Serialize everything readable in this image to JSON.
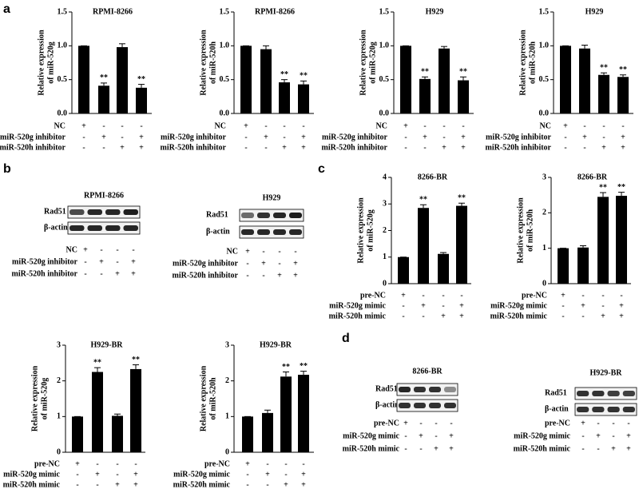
{
  "panel_labels": [
    "a",
    "b",
    "c",
    "d"
  ],
  "chart_data": [
    {
      "type": "bar",
      "title": "RPMI-8266",
      "ylabel": [
        "Relative expression",
        "of miR-520g"
      ],
      "color": "#000000",
      "ylim": [
        0,
        1.5
      ],
      "yticks": [
        {
          "value": 0,
          "label": "0.0"
        },
        0.5,
        {
          "value": 1,
          "label": "1.0"
        },
        1.5
      ],
      "values": [
        1.0,
        0.41,
        0.98,
        0.38
      ],
      "errors": [
        0,
        0.04,
        0.05,
        0.05
      ],
      "annotations": [
        null,
        "**",
        null,
        "**"
      ],
      "conditions": [
        {
          "label": "NC",
          "signs": [
            "+",
            "-",
            "-",
            "-"
          ]
        },
        {
          "label": "miR-520g inhibitor",
          "signs": [
            "-",
            "+",
            "-",
            "+"
          ]
        },
        {
          "label": "miR-520h inhibitor",
          "signs": [
            "-",
            "-",
            "+",
            "+"
          ]
        }
      ]
    },
    {
      "type": "bar",
      "title": "RPMI-8266",
      "ylabel": [
        "Relative expression",
        "of miR-520h"
      ],
      "color": "#000000",
      "ylim": [
        0,
        1.5
      ],
      "yticks": [
        {
          "value": 0,
          "label": "0.0"
        },
        0.5,
        {
          "value": 1,
          "label": "1.0"
        },
        1.5
      ],
      "values": [
        1.0,
        0.95,
        0.46,
        0.43
      ],
      "errors": [
        0,
        0.05,
        0.04,
        0.05
      ],
      "annotations": [
        null,
        null,
        "**",
        "**"
      ],
      "conditions": [
        {
          "label": "NC",
          "signs": [
            "+",
            "-",
            "-",
            "-"
          ]
        },
        {
          "label": "miR-520g inhibitor",
          "signs": [
            "-",
            "+",
            "-",
            "+"
          ]
        },
        {
          "label": "miR-520h inhibitor",
          "signs": [
            "-",
            "-",
            "+",
            "+"
          ]
        }
      ]
    },
    {
      "type": "bar",
      "title": "H929",
      "ylabel": [
        "Relative expression",
        "of miR-520g"
      ],
      "color": "#000000",
      "ylim": [
        0,
        1.5
      ],
      "yticks": [
        {
          "value": 0,
          "label": "0.0"
        },
        0.5,
        {
          "value": 1,
          "label": "1.0"
        },
        1.5
      ],
      "values": [
        1.0,
        0.51,
        0.96,
        0.49
      ],
      "errors": [
        0,
        0.03,
        0.03,
        0.05
      ],
      "annotations": [
        null,
        "**",
        null,
        "**"
      ],
      "conditions": [
        {
          "label": "NC",
          "signs": [
            "+",
            "-",
            "-",
            "-"
          ]
        },
        {
          "label": "miR-520g inhibitor",
          "signs": [
            "-",
            "+",
            "-",
            "+"
          ]
        },
        {
          "label": "miR-520h inhibitor",
          "signs": [
            "-",
            "-",
            "+",
            "+"
          ]
        }
      ]
    },
    {
      "type": "bar",
      "title": "H929",
      "ylabel": [
        "Relative expression",
        "of miR-520h"
      ],
      "color": "#000000",
      "ylim": [
        0,
        1.5
      ],
      "yticks": [
        {
          "value": 0,
          "label": "0.0"
        },
        0.5,
        {
          "value": 1,
          "label": "1.0"
        },
        1.5
      ],
      "values": [
        1.0,
        0.96,
        0.57,
        0.54
      ],
      "errors": [
        0,
        0.05,
        0.03,
        0.03
      ],
      "annotations": [
        null,
        null,
        "**",
        "**"
      ],
      "conditions": [
        {
          "label": "NC",
          "signs": [
            "+",
            "-",
            "-",
            "-"
          ]
        },
        {
          "label": "miR-520g inhibitor",
          "signs": [
            "-",
            "+",
            "-",
            "+"
          ]
        },
        {
          "label": "miR-520h inhibitor",
          "signs": [
            "-",
            "-",
            "+",
            "+"
          ]
        }
      ]
    },
    {
      "type": "bar",
      "title": "8266-BR",
      "ylabel": [
        "Relative expression",
        "of miR-520g"
      ],
      "color": "#000000",
      "ylim": [
        0,
        4
      ],
      "yticks": [
        0,
        1,
        2,
        3,
        4
      ],
      "values": [
        1.0,
        2.85,
        1.12,
        2.93
      ],
      "errors": [
        0,
        0.12,
        0.05,
        0.1
      ],
      "annotations": [
        null,
        "**",
        null,
        "**"
      ],
      "conditions": [
        {
          "label": "pre-NC",
          "signs": [
            "+",
            "-",
            "-",
            "-"
          ]
        },
        {
          "label": "miR-520g mimic",
          "signs": [
            "-",
            "+",
            "-",
            "+"
          ]
        },
        {
          "label": "miR-520h mimic",
          "signs": [
            "-",
            "-",
            "+",
            "+"
          ]
        }
      ]
    },
    {
      "type": "bar",
      "title": "8266-BR",
      "ylabel": [
        "Relative expression",
        "of miR-520h"
      ],
      "color": "#000000",
      "ylim": [
        0,
        3
      ],
      "yticks": [
        0,
        1,
        2,
        3
      ],
      "values": [
        1.0,
        1.02,
        2.45,
        2.48
      ],
      "errors": [
        0,
        0.05,
        0.12,
        0.1
      ],
      "annotations": [
        null,
        null,
        "**",
        "**"
      ],
      "conditions": [
        {
          "label": "pre-NC",
          "signs": [
            "+",
            "-",
            "-",
            "-"
          ]
        },
        {
          "label": "miR-520g mimic",
          "signs": [
            "-",
            "+",
            "-",
            "+"
          ]
        },
        {
          "label": "miR-520h mimic",
          "signs": [
            "-",
            "-",
            "+",
            "+"
          ]
        }
      ]
    },
    {
      "type": "bar",
      "title": "H929-BR",
      "ylabel": [
        "Relative expression",
        "of miR-520g"
      ],
      "color": "#000000",
      "ylim": [
        0,
        3
      ],
      "yticks": [
        0,
        1,
        2,
        3
      ],
      "values": [
        1.0,
        2.25,
        1.02,
        2.33
      ],
      "errors": [
        0,
        0.12,
        0.05,
        0.12
      ],
      "annotations": [
        null,
        "**",
        null,
        "**"
      ],
      "conditions": [
        {
          "label": "pre-NC",
          "signs": [
            "+",
            "-",
            "-",
            "-"
          ]
        },
        {
          "label": "miR-520g mimic",
          "signs": [
            "-",
            "+",
            "-",
            "+"
          ]
        },
        {
          "label": "miR-520h mimic",
          "signs": [
            "-",
            "-",
            "+",
            "+"
          ]
        }
      ]
    },
    {
      "type": "bar",
      "title": "H929-BR",
      "ylabel": [
        "Relative expression",
        "of miR-520h"
      ],
      "color": "#000000",
      "ylim": [
        0,
        3
      ],
      "yticks": [
        0,
        1,
        2,
        3
      ],
      "values": [
        1.0,
        1.1,
        2.12,
        2.17
      ],
      "errors": [
        0,
        0.08,
        0.13,
        0.1
      ],
      "annotations": [
        null,
        null,
        "**",
        "**"
      ],
      "conditions": [
        {
          "label": "pre-NC",
          "signs": [
            "+",
            "-",
            "-",
            "-"
          ]
        },
        {
          "label": "miR-520g mimic",
          "signs": [
            "-",
            "+",
            "-",
            "+"
          ]
        },
        {
          "label": "miR-520h mimic",
          "signs": [
            "-",
            "-",
            "+",
            "+"
          ]
        }
      ]
    }
  ],
  "blots": [
    {
      "title": "RPMI-8266",
      "rows": [
        "Rad51",
        "β-actin"
      ],
      "conditions": [
        {
          "label": "NC",
          "signs": [
            "+",
            "-",
            "-",
            "-"
          ]
        },
        {
          "label": "miR-520g inhibitor",
          "signs": [
            "-",
            "+",
            "-",
            "+"
          ]
        },
        {
          "label": "miR-520h inhibitor",
          "signs": [
            "-",
            "-",
            "+",
            "+"
          ]
        }
      ]
    },
    {
      "title": "H929",
      "rows": [
        "Rad51",
        "β-actin"
      ],
      "conditions": [
        {
          "label": "NC",
          "signs": [
            "+",
            "-",
            "-",
            "-"
          ]
        },
        {
          "label": "miR-520g inhibitor",
          "signs": [
            "-",
            "+",
            "-",
            "+"
          ]
        },
        {
          "label": "miR-520h inhibitor",
          "signs": [
            "-",
            "-",
            "+",
            "+"
          ]
        }
      ]
    },
    {
      "title": "8266-BR",
      "rows": [
        "Rad51",
        "β-actin"
      ],
      "conditions": [
        {
          "label": "pre-NC",
          "signs": [
            "+",
            "-",
            "-",
            "-"
          ]
        },
        {
          "label": "miR-520g mimic",
          "signs": [
            "-",
            "+",
            "-",
            "+"
          ]
        },
        {
          "label": "miR-520h mimic",
          "signs": [
            "-",
            "-",
            "+",
            "+"
          ]
        }
      ]
    },
    {
      "title": "H929-BR",
      "rows": [
        "Rad51",
        "β-actin"
      ],
      "conditions": [
        {
          "label": "pre-NC",
          "signs": [
            "+",
            "-",
            "-",
            "-"
          ]
        },
        {
          "label": "miR-520g mimic",
          "signs": [
            "-",
            "+",
            "-",
            "+"
          ]
        },
        {
          "label": "miR-520h mimic",
          "signs": [
            "-",
            "-",
            "+",
            "+"
          ]
        }
      ]
    }
  ]
}
